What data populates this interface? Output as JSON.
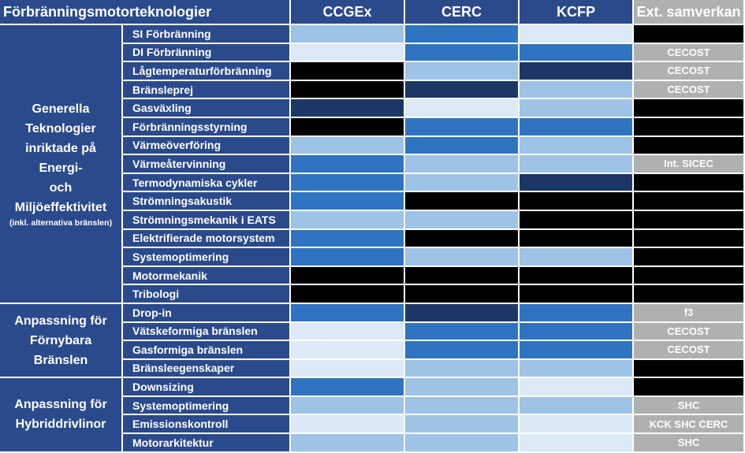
{
  "header": {
    "title": "Förbränningsmotorteknologier",
    "columns": [
      "CCGEx",
      "CERC",
      "KCFP",
      "Ext. samverkan"
    ]
  },
  "legend_colors": {
    "light": "#dce9f6",
    "mid": "#9dc3e6",
    "strong": "#2f74c0",
    "dark": "#1c3766",
    "none": "#000000",
    "ext_gray": "#b0b0b0",
    "header_blue": "#2b4a8c"
  },
  "groups": [
    {
      "lines": [
        "Generella",
        "Teknologier",
        "inriktade på Energi-",
        "och",
        "Miljöeffektivitet"
      ],
      "note": "(inkl. alternativa bränslen)",
      "rows": [
        {
          "label": "SI Förbränning",
          "ccgex": "mid",
          "cerc": "strong",
          "kcfp": "light",
          "ext": "",
          "ext_color": "none"
        },
        {
          "label": "DI Förbränning",
          "ccgex": "light",
          "cerc": "strong",
          "kcfp": "strong",
          "ext": "CECOST",
          "ext_color": "ext_gray"
        },
        {
          "label": "Lågtemperaturförbränning",
          "ccgex": "none",
          "cerc": "mid",
          "kcfp": "dark",
          "ext": "CECOST",
          "ext_color": "ext_gray"
        },
        {
          "label": "Bränsleprej",
          "ccgex": "none",
          "cerc": "dark",
          "kcfp": "mid",
          "ext": "CECOST",
          "ext_color": "ext_gray"
        },
        {
          "label": "Gasväxling",
          "ccgex": "dark",
          "cerc": "light",
          "kcfp": "mid",
          "ext": "",
          "ext_color": "none"
        },
        {
          "label": "Förbränningsstyrning",
          "ccgex": "none",
          "cerc": "strong",
          "kcfp": "strong",
          "ext": "",
          "ext_color": "none"
        },
        {
          "label": "Värmeöverföring",
          "ccgex": "mid",
          "cerc": "strong",
          "kcfp": "mid",
          "ext": "",
          "ext_color": "none"
        },
        {
          "label": "Värmeåtervinning",
          "ccgex": "strong",
          "cerc": "mid",
          "kcfp": "mid",
          "ext": "Int. SICEC",
          "ext_color": "ext_gray"
        },
        {
          "label": "Termodynamiska cykler",
          "ccgex": "strong",
          "cerc": "mid",
          "kcfp": "dark",
          "ext": "",
          "ext_color": "none"
        },
        {
          "label": "Strömningsakustik",
          "ccgex": "strong",
          "cerc": "none",
          "kcfp": "none",
          "ext": "",
          "ext_color": "none"
        },
        {
          "label": "Strömningsmekanik i EATS",
          "ccgex": "mid",
          "cerc": "mid",
          "kcfp": "none",
          "ext": "",
          "ext_color": "none"
        },
        {
          "label": "Elektrifierade motorsystem",
          "ccgex": "strong",
          "cerc": "none",
          "kcfp": "none",
          "ext": "",
          "ext_color": "none"
        },
        {
          "label": "Systemoptimering",
          "ccgex": "strong",
          "cerc": "mid",
          "kcfp": "mid",
          "ext": "",
          "ext_color": "none"
        },
        {
          "label": "Motormekanik",
          "ccgex": "none",
          "cerc": "none",
          "kcfp": "none",
          "ext": "",
          "ext_color": "none"
        },
        {
          "label": "Tribologi",
          "ccgex": "none",
          "cerc": "none",
          "kcfp": "none",
          "ext": "",
          "ext_color": "none"
        }
      ]
    },
    {
      "lines": [
        "Anpassning för",
        "Förnybara",
        "Bränslen"
      ],
      "note": "",
      "rows": [
        {
          "label": "Drop-in",
          "ccgex": "strong",
          "cerc": "dark",
          "kcfp": "strong",
          "ext": "f3",
          "ext_color": "ext_gray"
        },
        {
          "label": "Vätskeformiga bränslen",
          "ccgex": "light",
          "cerc": "strong",
          "kcfp": "strong",
          "ext": "CECOST",
          "ext_color": "ext_gray"
        },
        {
          "label": "Gasformiga bränslen",
          "ccgex": "light",
          "cerc": "strong",
          "kcfp": "strong",
          "ext": "CECOST",
          "ext_color": "ext_gray"
        },
        {
          "label": "Bränsleegenskaper",
          "ccgex": "light",
          "cerc": "mid",
          "kcfp": "mid",
          "ext": "",
          "ext_color": "none"
        }
      ]
    },
    {
      "lines": [
        "Anpassning för",
        "Hybriddrivlinor"
      ],
      "note": "",
      "rows": [
        {
          "label": "Downsizing",
          "ccgex": "strong",
          "cerc": "mid",
          "kcfp": "light",
          "ext": "",
          "ext_color": "none"
        },
        {
          "label": "Systemoptimering",
          "ccgex": "mid",
          "cerc": "mid",
          "kcfp": "mid",
          "ext": "SHC",
          "ext_color": "ext_gray"
        },
        {
          "label": "Emissionskontroll",
          "ccgex": "light",
          "cerc": "mid",
          "kcfp": "light",
          "ext": "KCK SHC CERC",
          "ext_color": "ext_gray"
        },
        {
          "label": "Motorarkitektur",
          "ccgex": "mid",
          "cerc": "mid",
          "kcfp": "light",
          "ext": "SHC",
          "ext_color": "ext_gray"
        }
      ]
    }
  ]
}
